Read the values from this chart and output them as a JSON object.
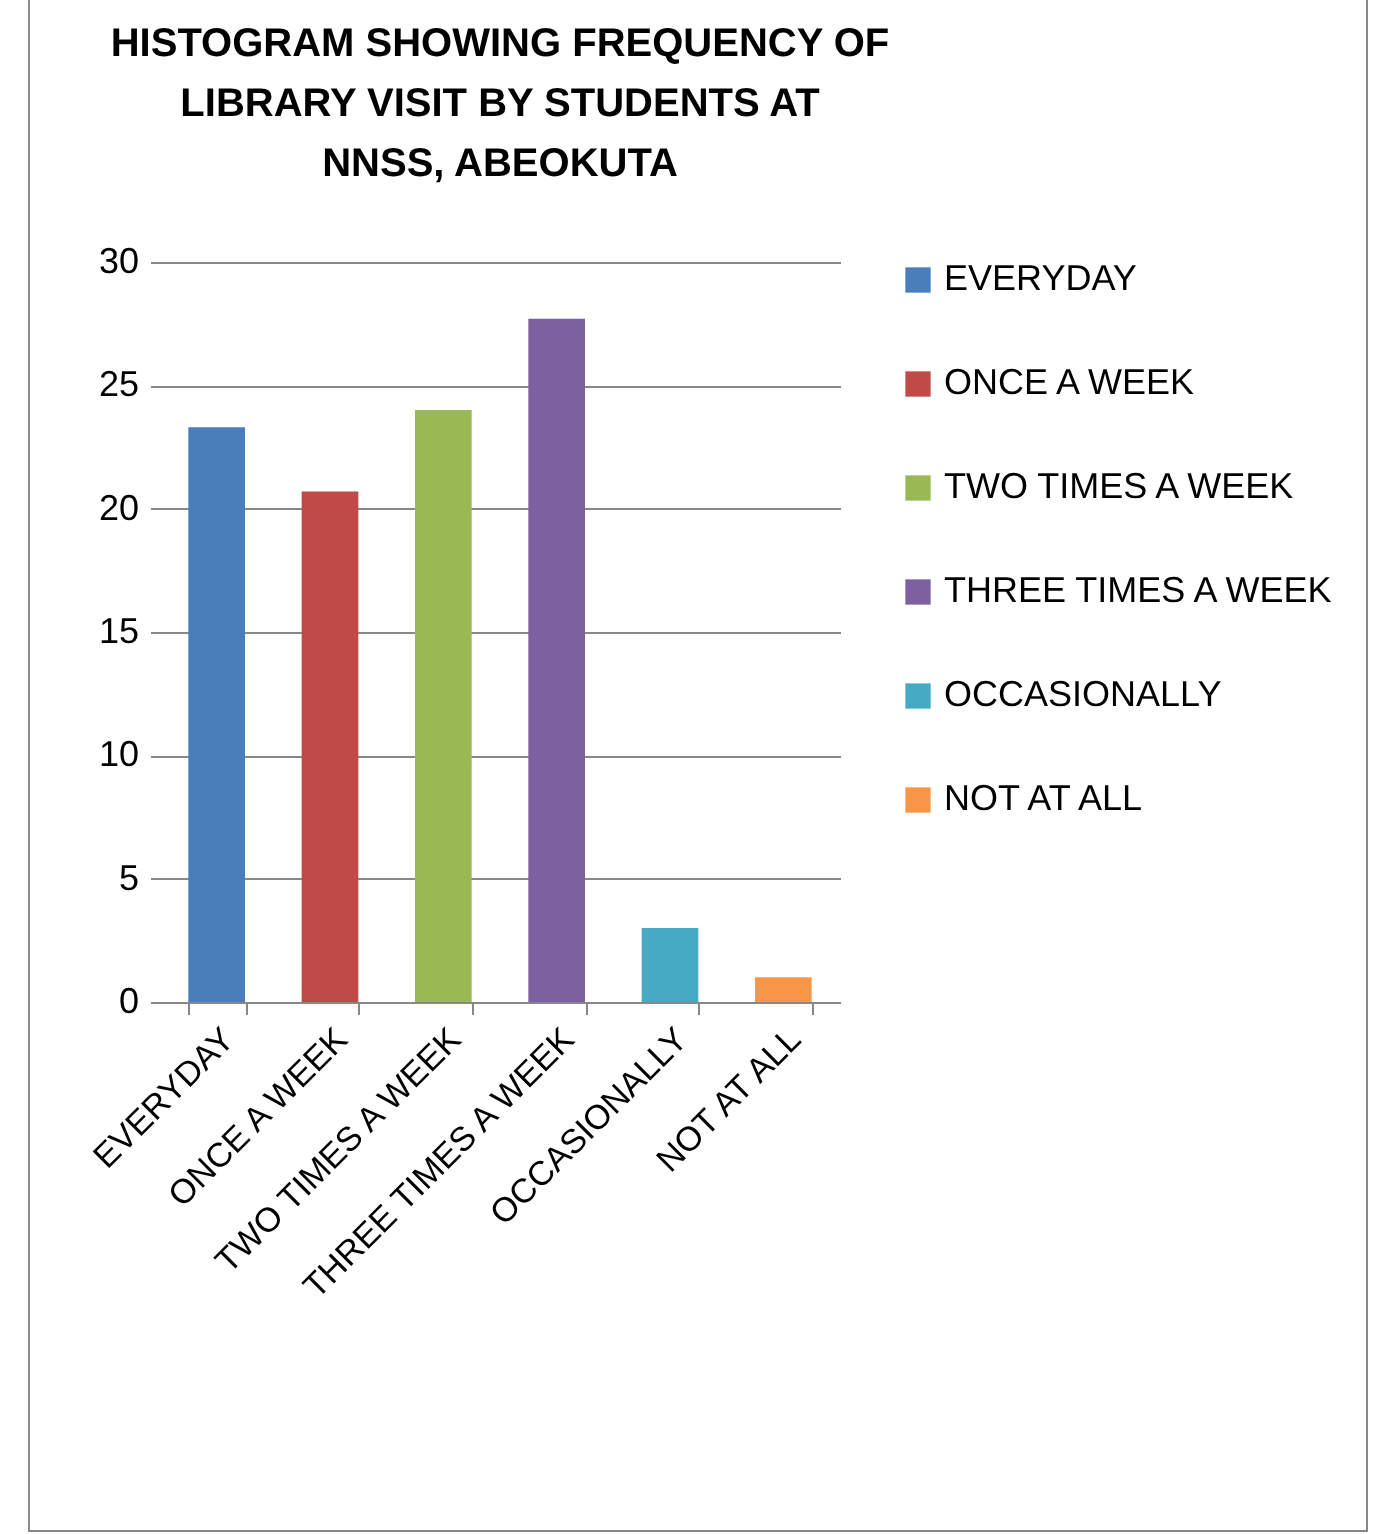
{
  "chart_data": {
    "type": "bar",
    "title": "HISTOGRAM SHOWING FREQUENCY OF LIBRARY VISIT BY STUDENTS AT NNSS, ABEOKUTA",
    "categories": [
      "EVERYDAY",
      "ONCE A WEEK",
      "TWO TIMES A WEEK",
      "THREE TIMES A WEEK",
      "OCCASIONALLY",
      "NOT AT ALL"
    ],
    "series": [
      {
        "name": "EVERYDAY",
        "color": "#4a7ebb",
        "values": [
          23.3,
          null,
          null,
          null,
          null,
          null
        ]
      },
      {
        "name": "ONCE A WEEK",
        "color": "#be4b48",
        "values": [
          null,
          20.7,
          null,
          null,
          null,
          null
        ]
      },
      {
        "name": "TWO TIMES A WEEK",
        "color": "#98b954",
        "values": [
          null,
          null,
          24,
          null,
          null,
          null
        ]
      },
      {
        "name": "THREE TIMES A WEEK",
        "color": "#7d60a0",
        "values": [
          null,
          null,
          null,
          27.7,
          null,
          null
        ]
      },
      {
        "name": "OCCASIONALLY",
        "color": "#46aac5",
        "values": [
          null,
          null,
          null,
          null,
          3,
          null
        ]
      },
      {
        "name": "NOT AT ALL",
        "color": "#f79646",
        "values": [
          null,
          null,
          null,
          null,
          null,
          1
        ]
      }
    ],
    "ylim": [
      0,
      30
    ],
    "yticks": [
      0,
      5,
      10,
      15,
      20,
      25,
      30
    ],
    "grid": "y",
    "legend": "right"
  }
}
